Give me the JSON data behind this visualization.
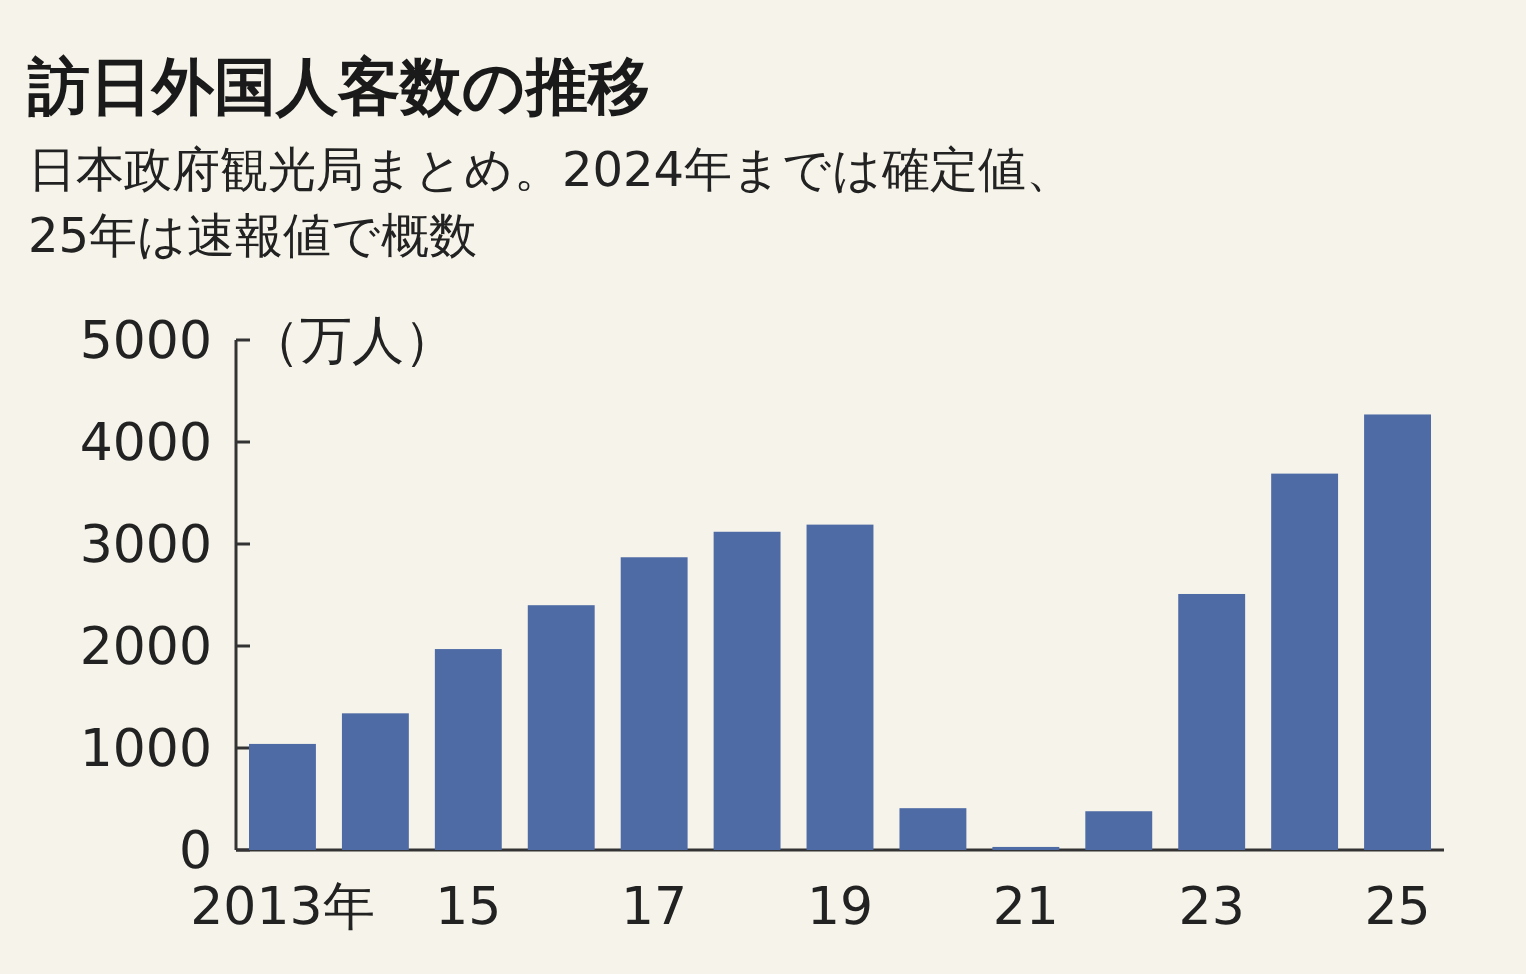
{
  "chart_data": {
    "type": "bar",
    "title": "訪日外国人客数の推移",
    "subtitle": "日本政府観光局まとめ。2024年までは確定値、25年は速報値で概数",
    "ylabel": "（万人）",
    "categories": [
      "2013年",
      null,
      "15",
      null,
      "17",
      null,
      "19",
      null,
      "21",
      null,
      "23",
      null,
      "25"
    ],
    "values": [
      1040,
      1340,
      1970,
      2400,
      2870,
      3120,
      3190,
      410,
      30,
      380,
      2510,
      3690,
      4270
    ],
    "color": "#4f6ba6",
    "ylim": [
      0,
      5000
    ],
    "yticks": [
      0,
      1000,
      2000,
      3000,
      4000,
      5000
    ],
    "grid": false
  }
}
